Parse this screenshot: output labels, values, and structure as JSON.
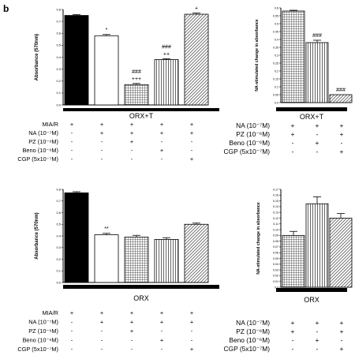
{
  "panel_label": "b",
  "chart_data": [
    {
      "type": "bar",
      "ylabel": "Absorbance (570nm)",
      "group_label": "ORX+T",
      "ylim": [
        0,
        0.8
      ],
      "yticks": [
        "0.0",
        "0.1",
        "0.2",
        "0.3",
        "0.4",
        "0.5",
        "0.6",
        "0.7",
        "0.8"
      ],
      "values": [
        0.75,
        0.58,
        0.17,
        0.38,
        0.76
      ],
      "errors": [
        0.008,
        0.01,
        0.01,
        0.008,
        0.01
      ],
      "annotations": [
        [],
        [
          "*"
        ],
        [
          "+++",
          "###"
        ],
        [
          "++",
          "###"
        ],
        [
          "+"
        ]
      ],
      "patterns": [
        "black",
        "white",
        "grid",
        "vstripe",
        "diag"
      ]
    },
    {
      "type": "bar",
      "ylabel": "NA-stimulated change in absorbance",
      "group_label": "ORX+T",
      "ylim": [
        0,
        0.6
      ],
      "yticks": [
        "0.0",
        "0.05",
        "0.1",
        "0.15",
        "0.2",
        "0.25",
        "0.3",
        "0.35",
        "0.4",
        "0.45",
        "0.5",
        "0.55",
        "0.6"
      ],
      "values": [
        0.58,
        0.38,
        0.05
      ],
      "errors": [
        0.005,
        0.015,
        0.0
      ],
      "annotations": [
        [],
        [
          "###"
        ],
        [
          "###"
        ]
      ],
      "patterns": [
        "grid",
        "vstripe",
        "diag"
      ]
    },
    {
      "type": "bar",
      "ylabel": "Absorbance (570nm)",
      "group_label": "ORX",
      "ylim": [
        0,
        0.8
      ],
      "yticks": [
        "0.0",
        "0.1",
        "0.2",
        "0.3",
        "0.4",
        "0.5",
        "0.6",
        "0.7",
        "0.8"
      ],
      "values": [
        0.77,
        0.41,
        0.39,
        0.37,
        0.5
      ],
      "errors": [
        0.01,
        0.012,
        0.015,
        0.015,
        0.01
      ],
      "annotations": [
        [],
        [
          "**"
        ],
        [],
        [],
        []
      ],
      "patterns": [
        "black",
        "white",
        "grid",
        "vstripe",
        "diag"
      ]
    },
    {
      "type": "bar",
      "ylabel": "NA-stimulated change in absorbance",
      "group_label": "ORX",
      "ylim": [
        0,
        0.17
      ],
      "yticks": [
        "0.0",
        "0.01",
        "0.02",
        "0.03",
        "0.04",
        "0.05",
        "0.06",
        "0.07",
        "0.08",
        "0.09",
        "0.10",
        "0.11",
        "0.12",
        "0.13",
        "0.14",
        "0.15",
        "0.16",
        "0.17"
      ],
      "values": [
        0.09,
        0.145,
        0.12
      ],
      "errors": [
        0.007,
        0.012,
        0.008
      ],
      "annotations": [
        [],
        [],
        []
      ],
      "patterns": [
        "grid",
        "vstripe",
        "diag"
      ]
    }
  ],
  "tables": [
    {
      "rows": [
        {
          "label": "MIA/R",
          "cells": [
            "+",
            "+",
            "+",
            "+",
            "+"
          ]
        },
        {
          "label": "NA (10⁻⁷M)",
          "cells": [
            "-",
            "+",
            "+",
            "+",
            "+"
          ]
        },
        {
          "label": "PZ (10⁻⁶M)",
          "cells": [
            "-",
            "-",
            "+",
            "-",
            "-"
          ]
        },
        {
          "label": "Beno (10⁻⁶M)",
          "cells": [
            "-",
            "-",
            "-",
            "+",
            "-"
          ]
        },
        {
          "label": "CGP (5x10⁻⁷M)",
          "cells": [
            "-",
            "-",
            "-",
            "-",
            "+"
          ]
        }
      ]
    },
    {
      "rows": [
        {
          "label": "NA (10⁻⁷M)",
          "cells": [
            "+",
            "+",
            "+"
          ]
        },
        {
          "label": "PZ (10⁻⁶M)",
          "cells": [
            "+",
            "-",
            "+"
          ]
        },
        {
          "label": "Beno (10⁻⁶M)",
          "cells": [
            "-",
            "+",
            "-"
          ]
        },
        {
          "label": "CGP (5x10⁻⁷M)",
          "cells": [
            "-",
            "-",
            "+"
          ]
        }
      ]
    },
    {
      "rows": [
        {
          "label": "MIA/R",
          "cells": [
            "+",
            "+",
            "+",
            "+",
            "+"
          ]
        },
        {
          "label": "NA (10⁻⁷M)",
          "cells": [
            "-",
            "+",
            "+",
            "+",
            "+"
          ]
        },
        {
          "label": "PZ (10⁻⁶M)",
          "cells": [
            "-",
            "-",
            "+",
            "-",
            "-"
          ]
        },
        {
          "label": "Beno (10⁻⁶M)",
          "cells": [
            "-",
            "-",
            "-",
            "+",
            "-"
          ]
        },
        {
          "label": "CGP (5x10⁻⁷M)",
          "cells": [
            "-",
            "-",
            "-",
            "-",
            "+"
          ]
        }
      ]
    },
    {
      "rows": [
        {
          "label": "NA (10⁻⁷M)",
          "cells": [
            "+",
            "+",
            "+"
          ]
        },
        {
          "label": "PZ (10⁻⁶M)",
          "cells": [
            "+",
            "-",
            "+"
          ]
        },
        {
          "label": "Beno (10⁻⁶M)",
          "cells": [
            "-",
            "+",
            "-"
          ]
        },
        {
          "label": "CGP (5x10⁻⁷M)",
          "cells": [
            "-",
            "-",
            "+"
          ]
        }
      ]
    }
  ]
}
